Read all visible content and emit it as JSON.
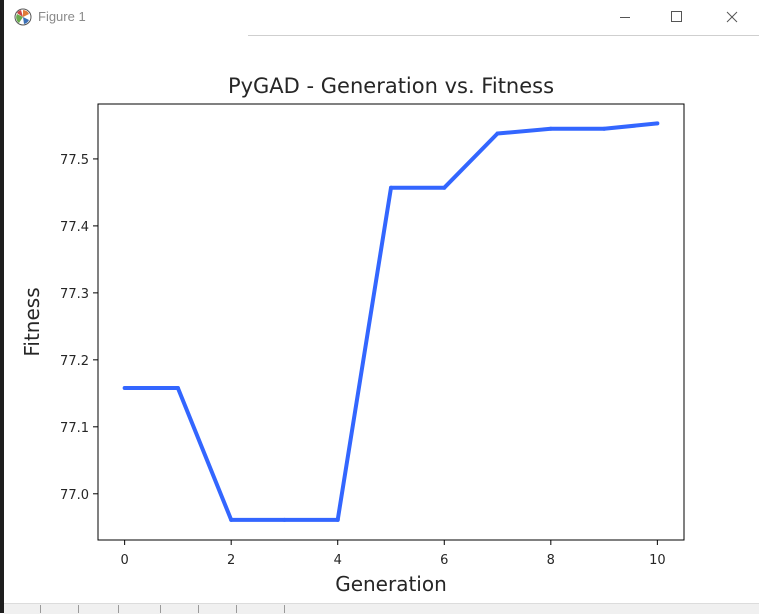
{
  "window": {
    "title": "Figure 1",
    "icons": {
      "app": "matplotlib-icon",
      "minimize": "minimize-icon",
      "maximize": "maximize-icon",
      "close": "close-icon"
    }
  },
  "chart_data": {
    "type": "line",
    "title": "PyGAD - Generation vs. Fitness",
    "xlabel": "Generation",
    "ylabel": "Fitness",
    "x": [
      0,
      1,
      2,
      3,
      4,
      5,
      6,
      7,
      8,
      9,
      10
    ],
    "y": [
      77.158,
      77.158,
      76.961,
      76.961,
      76.961,
      77.457,
      77.457,
      77.538,
      77.545,
      77.545,
      77.553
    ],
    "xlim": [
      -0.5,
      10.5
    ],
    "ylim": [
      76.931,
      77.582
    ],
    "xticks": [
      0,
      2,
      4,
      6,
      8,
      10
    ],
    "yticks": [
      77.0,
      77.1,
      77.2,
      77.3,
      77.4,
      77.5
    ],
    "ytick_labels": [
      "77.0",
      "77.1",
      "77.2",
      "77.3",
      "77.4",
      "77.5"
    ],
    "line_color": "#3366ff",
    "grid": false
  }
}
